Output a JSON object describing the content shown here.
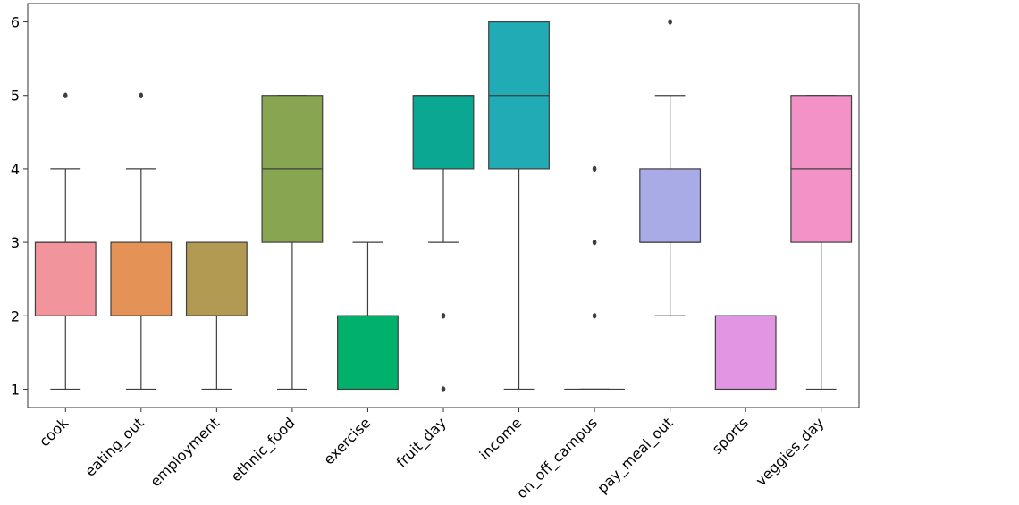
{
  "chart_data": {
    "type": "box",
    "title": "",
    "xlabel": "",
    "ylabel": "",
    "ylim": [
      0.75,
      6.25
    ],
    "yticks": [
      1,
      2,
      3,
      4,
      5,
      6
    ],
    "grid": false,
    "categories": [
      "cook",
      "eating_out",
      "employment",
      "ethnic_food",
      "exercise",
      "fruit_day",
      "income",
      "on_off_campus",
      "pay_meal_out",
      "sports",
      "veggies_day"
    ],
    "boxes": [
      {
        "category": "cook",
        "whislo": 1,
        "q1": 2,
        "med": 3,
        "q3": 3,
        "whishi": 4,
        "fliers": [
          5
        ],
        "color": "#f2949c"
      },
      {
        "category": "eating_out",
        "whislo": 1,
        "q1": 2,
        "med": 2,
        "q3": 3,
        "whishi": 4,
        "fliers": [
          5
        ],
        "color": "#e59257"
      },
      {
        "category": "employment",
        "whislo": 1,
        "q1": 2,
        "med": 2,
        "q3": 3,
        "whishi": 3,
        "fliers": [],
        "color": "#b39a53"
      },
      {
        "category": "ethnic_food",
        "whislo": 1,
        "q1": 3,
        "med": 4,
        "q3": 5,
        "whishi": 5,
        "fliers": [],
        "color": "#88a551"
      },
      {
        "category": "exercise",
        "whislo": 1,
        "q1": 1,
        "med": 2,
        "q3": 2,
        "whishi": 3,
        "fliers": [],
        "color": "#00b06b"
      },
      {
        "category": "fruit_day",
        "whislo": 3,
        "q1": 4,
        "med": 5,
        "q3": 5,
        "whishi": 5,
        "fliers": [
          1,
          2
        ],
        "color": "#0aa892"
      },
      {
        "category": "income",
        "whislo": 1,
        "q1": 4,
        "med": 5,
        "q3": 6,
        "whishi": 6,
        "fliers": [],
        "color": "#21abb4"
      },
      {
        "category": "on_off_campus",
        "whislo": 1,
        "q1": 1,
        "med": 1,
        "q3": 1,
        "whishi": 1,
        "fliers": [
          2,
          3,
          4
        ],
        "color": "#2aa9d6"
      },
      {
        "category": "pay_meal_out",
        "whislo": 2,
        "q1": 3,
        "med": 3,
        "q3": 4,
        "whishi": 5,
        "fliers": [
          6
        ],
        "color": "#a8abe6"
      },
      {
        "category": "sports",
        "whislo": 1,
        "q1": 1,
        "med": 2,
        "q3": 2,
        "whishi": 2,
        "fliers": [],
        "color": "#e196e3"
      },
      {
        "category": "veggies_day",
        "whislo": 1,
        "q1": 3,
        "med": 4,
        "q3": 5,
        "whishi": 5,
        "fliers": [],
        "color": "#f292c6"
      }
    ]
  }
}
